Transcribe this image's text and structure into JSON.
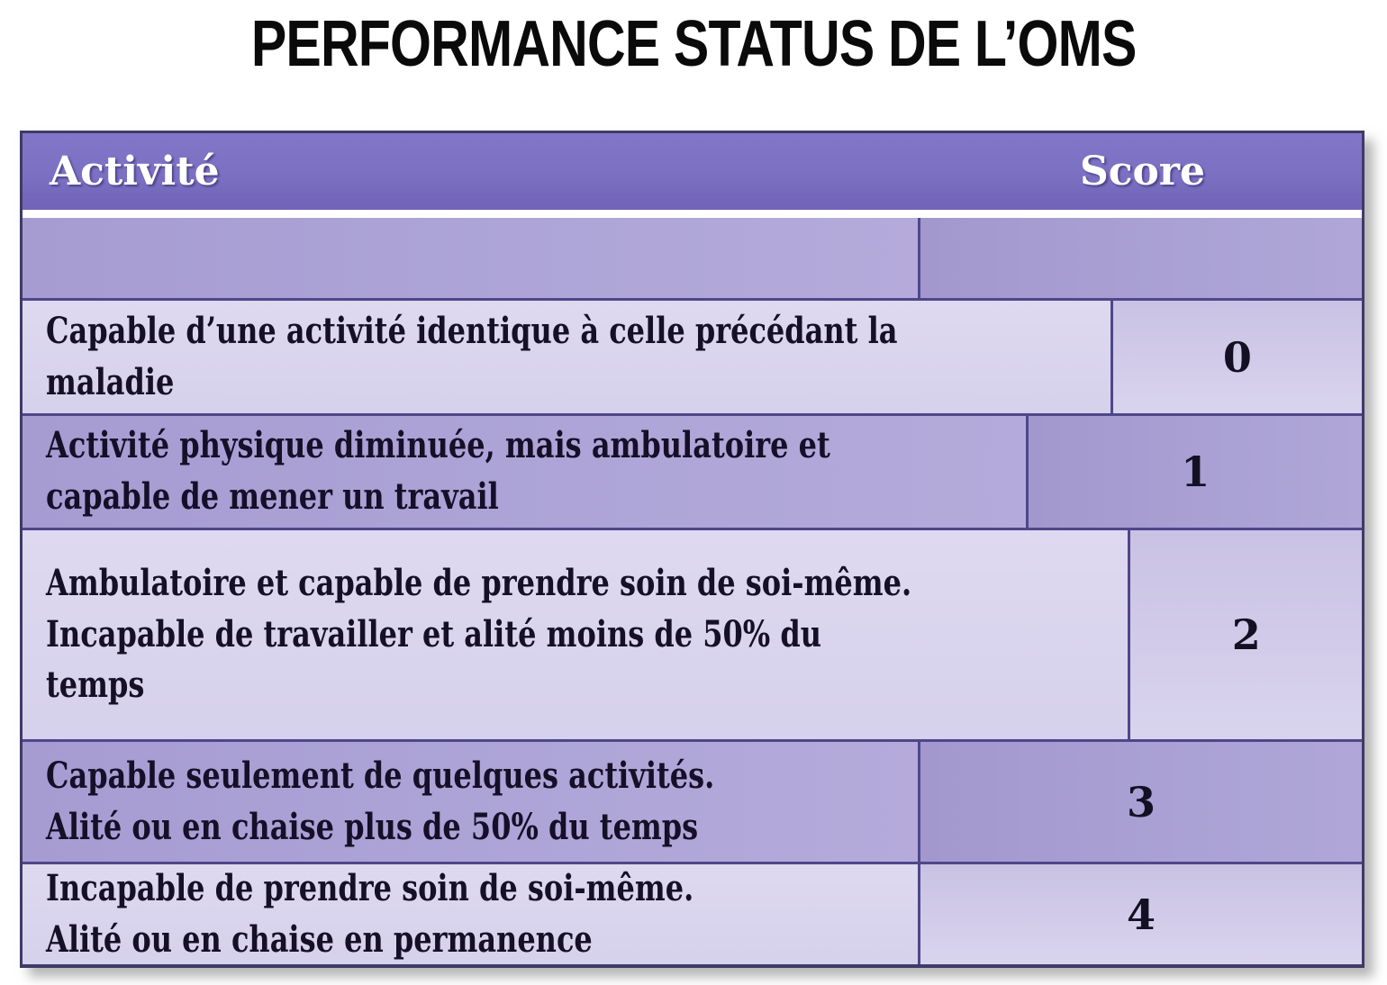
{
  "title": "PERFORMANCE STATUS DE L’OMS",
  "table": {
    "header": {
      "activity": "Activité",
      "score": "Score"
    },
    "rows": [
      {
        "activity": "",
        "score": ""
      },
      {
        "activity": "Capable d’une activité identique à celle précédant la\nmaladie",
        "score": "0"
      },
      {
        "activity": "Activité physique diminuée, mais ambulatoire et\ncapable de mener un travail",
        "score": "1"
      },
      {
        "activity": "Ambulatoire et capable de prendre soin de soi-même.\nIncapable de travailler et alité moins de 50% du\ntemps",
        "score": "2"
      },
      {
        "activity": "Capable seulement de quelques activités.\nAlité ou en chaise plus de 50% du temps",
        "score": "3"
      },
      {
        "activity": "Incapable de prendre soin de soi-même.\nAlité ou en chaise en permanence",
        "score": "4"
      }
    ]
  },
  "colors": {
    "header_bg": "#7b70c2",
    "row_dark": "#aca2d6",
    "row_light": "#d9d4ee",
    "grid_line": "#4f478a",
    "outer_border": "#3f3a68",
    "header_text": "#ffffff",
    "body_text": "#150f28",
    "title_text": "#0a0a0a"
  }
}
